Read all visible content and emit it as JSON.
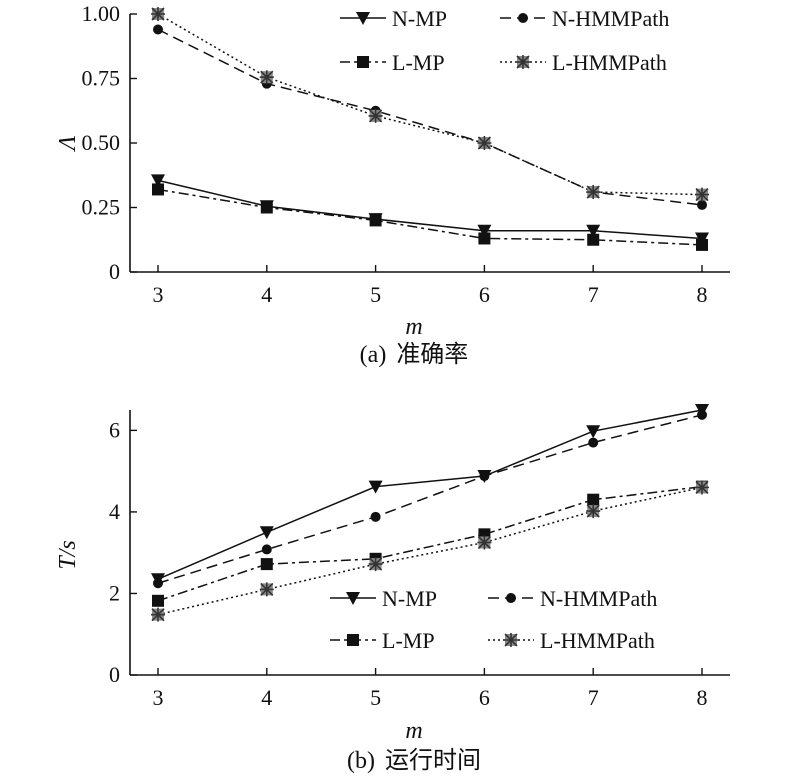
{
  "chart_data": [
    {
      "type": "line",
      "caption_prefix": "(a)",
      "caption_text": "准确率",
      "xlabel": "m",
      "ylabel": "Λ",
      "x": [
        3,
        4,
        5,
        6,
        7,
        8
      ],
      "xlim": [
        3,
        8
      ],
      "ylim": [
        0,
        1
      ],
      "yticks": [
        "0",
        "0.25",
        "0.50",
        "0.75",
        "1.00"
      ],
      "legend_placement": "top-right",
      "series": [
        {
          "name": "N-MP",
          "values": [
            0.355,
            0.255,
            0.205,
            0.16,
            0.16,
            0.13
          ]
        },
        {
          "name": "N-HMMPath",
          "values": [
            0.94,
            0.73,
            0.625,
            0.5,
            0.31,
            0.26
          ]
        },
        {
          "name": "L-MP",
          "values": [
            0.32,
            0.25,
            0.2,
            0.13,
            0.125,
            0.105
          ]
        },
        {
          "name": "L-HMMPath",
          "values": [
            1.0,
            0.755,
            0.605,
            0.5,
            0.31,
            0.3
          ]
        }
      ]
    },
    {
      "type": "line",
      "caption_prefix": "(b)",
      "caption_text": "运行时间",
      "xlabel": "m",
      "ylabel": "T/s",
      "x": [
        3,
        4,
        5,
        6,
        7,
        8
      ],
      "xlim": [
        3,
        8
      ],
      "ylim": [
        0,
        6.5
      ],
      "yticks": [
        "0",
        "2",
        "4",
        "6"
      ],
      "legend_placement": "bottom-right",
      "series": [
        {
          "name": "N-MP",
          "values": [
            2.35,
            3.5,
            4.62,
            4.88,
            5.98,
            6.5
          ]
        },
        {
          "name": "N-HMMPath",
          "values": [
            2.25,
            3.08,
            3.88,
            4.88,
            5.7,
            6.38
          ]
        },
        {
          "name": "L-MP",
          "values": [
            1.82,
            2.72,
            2.85,
            3.45,
            4.3,
            4.62
          ]
        },
        {
          "name": "L-HMMPath",
          "values": [
            1.48,
            2.1,
            2.72,
            3.25,
            4.02,
            4.6
          ]
        }
      ]
    }
  ]
}
